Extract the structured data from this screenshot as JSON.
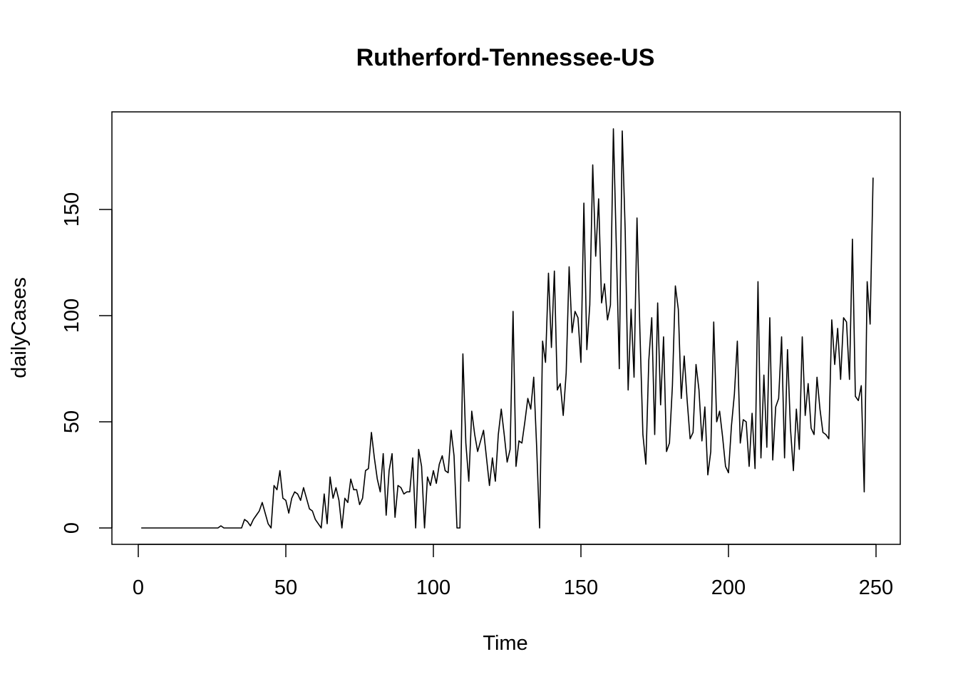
{
  "chart_data": {
    "type": "line",
    "title": "Rutherford-Tennessee-US",
    "xlabel": "Time",
    "ylabel": "dailyCases",
    "xlim": [
      1,
      248
    ],
    "ylim": [
      0,
      188
    ],
    "x_ticks": [
      0,
      50,
      100,
      150,
      200,
      250
    ],
    "y_ticks": [
      0,
      50,
      100,
      150
    ],
    "grid": false,
    "series": [
      {
        "values": [
          0,
          0,
          0,
          0,
          0,
          0,
          0,
          0,
          0,
          0,
          0,
          0,
          0,
          0,
          0,
          0,
          0,
          0,
          0,
          0,
          0,
          0,
          0,
          0,
          0,
          0,
          0,
          1,
          0,
          0,
          0,
          0,
          0,
          0,
          0,
          4,
          3,
          1,
          4,
          6,
          8,
          12,
          7,
          2,
          0,
          20,
          18,
          27,
          14,
          13,
          7,
          14,
          17,
          16,
          13,
          19,
          14,
          9,
          8,
          4,
          2,
          0,
          16,
          2,
          24,
          14,
          19,
          13,
          0,
          14,
          12,
          23,
          18,
          18,
          11,
          14,
          27,
          28,
          45,
          33,
          23,
          17,
          35,
          6,
          27,
          35,
          5,
          20,
          19,
          16,
          17,
          17,
          33,
          0,
          37,
          29,
          0,
          24,
          20,
          27,
          21,
          30,
          34,
          27,
          26,
          46,
          34,
          0,
          0,
          82,
          40,
          22,
          55,
          44,
          36,
          41,
          46,
          33,
          20,
          33,
          22,
          44,
          56,
          44,
          31,
          37,
          102,
          29,
          41,
          40,
          50,
          61,
          56,
          71,
          38,
          0,
          88,
          78,
          120,
          85,
          121,
          65,
          68,
          53,
          73,
          123,
          92,
          102,
          99,
          78,
          153,
          84,
          105,
          171,
          128,
          155,
          106,
          115,
          98,
          105,
          188,
          132,
          75,
          187,
          140,
          65,
          103,
          71,
          146,
          92,
          44,
          30,
          79,
          99,
          44,
          106,
          58,
          90,
          36,
          40,
          67,
          114,
          103,
          61,
          81,
          60,
          42,
          45,
          77,
          65,
          41,
          57,
          25,
          36,
          97,
          50,
          55,
          43,
          29,
          26,
          48,
          63,
          88,
          40,
          51,
          50,
          29,
          54,
          28,
          116,
          33,
          72,
          38,
          99,
          32,
          57,
          61,
          90,
          33,
          84,
          47,
          27,
          56,
          37,
          90,
          53,
          68,
          47,
          44,
          71,
          56,
          45,
          44,
          42,
          98,
          77,
          94,
          70,
          99,
          97,
          70,
          136,
          62,
          60,
          67,
          17,
          116,
          96,
          165
        ]
      }
    ]
  }
}
